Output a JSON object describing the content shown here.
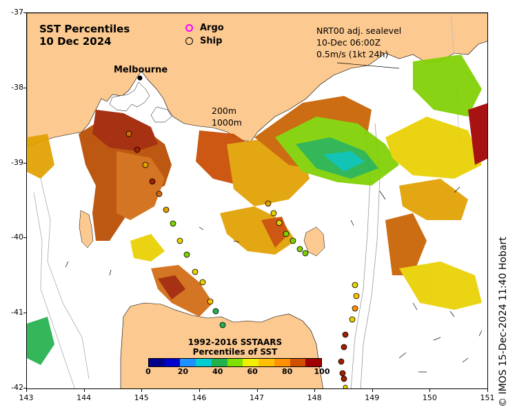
{
  "map": {
    "title_line1": "SST Percentiles",
    "title_line2": "10 Dec 2024",
    "city_label": "Melbourne",
    "legend": {
      "argo_label": "Argo",
      "ship_label": "Ship",
      "argo_color": "#ff00ff"
    },
    "current_info": {
      "line1": "NRT00 adj. sealevel",
      "line2": "10-Dec 06:00Z",
      "line3": "0.5m/s (1kt 24h)"
    },
    "contours": {
      "label1": "200m",
      "label2": "1000m"
    },
    "colorbar": {
      "title_line1": "1992-2016 SSTAARS",
      "title_line2": "Percentiles of SST",
      "colors": [
        "#00008b",
        "#0000cd",
        "#1e90ff",
        "#00ced1",
        "#22b14c",
        "#7fe000",
        "#f0f000",
        "#ffc000",
        "#ff9000",
        "#d05000",
        "#a00000"
      ],
      "tick_labels": [
        "0",
        "20",
        "40",
        "60",
        "80",
        "100"
      ]
    },
    "lon_labels": [
      "143",
      "144",
      "145",
      "146",
      "147",
      "148",
      "149",
      "150",
      "151"
    ],
    "lat_labels": [
      "-37",
      "-38",
      "-39",
      "-40",
      "-41",
      "-42"
    ],
    "credit": "© IMOS 15-Dec-2024 11:40 Hobart",
    "land_color": "#fcc990"
  }
}
